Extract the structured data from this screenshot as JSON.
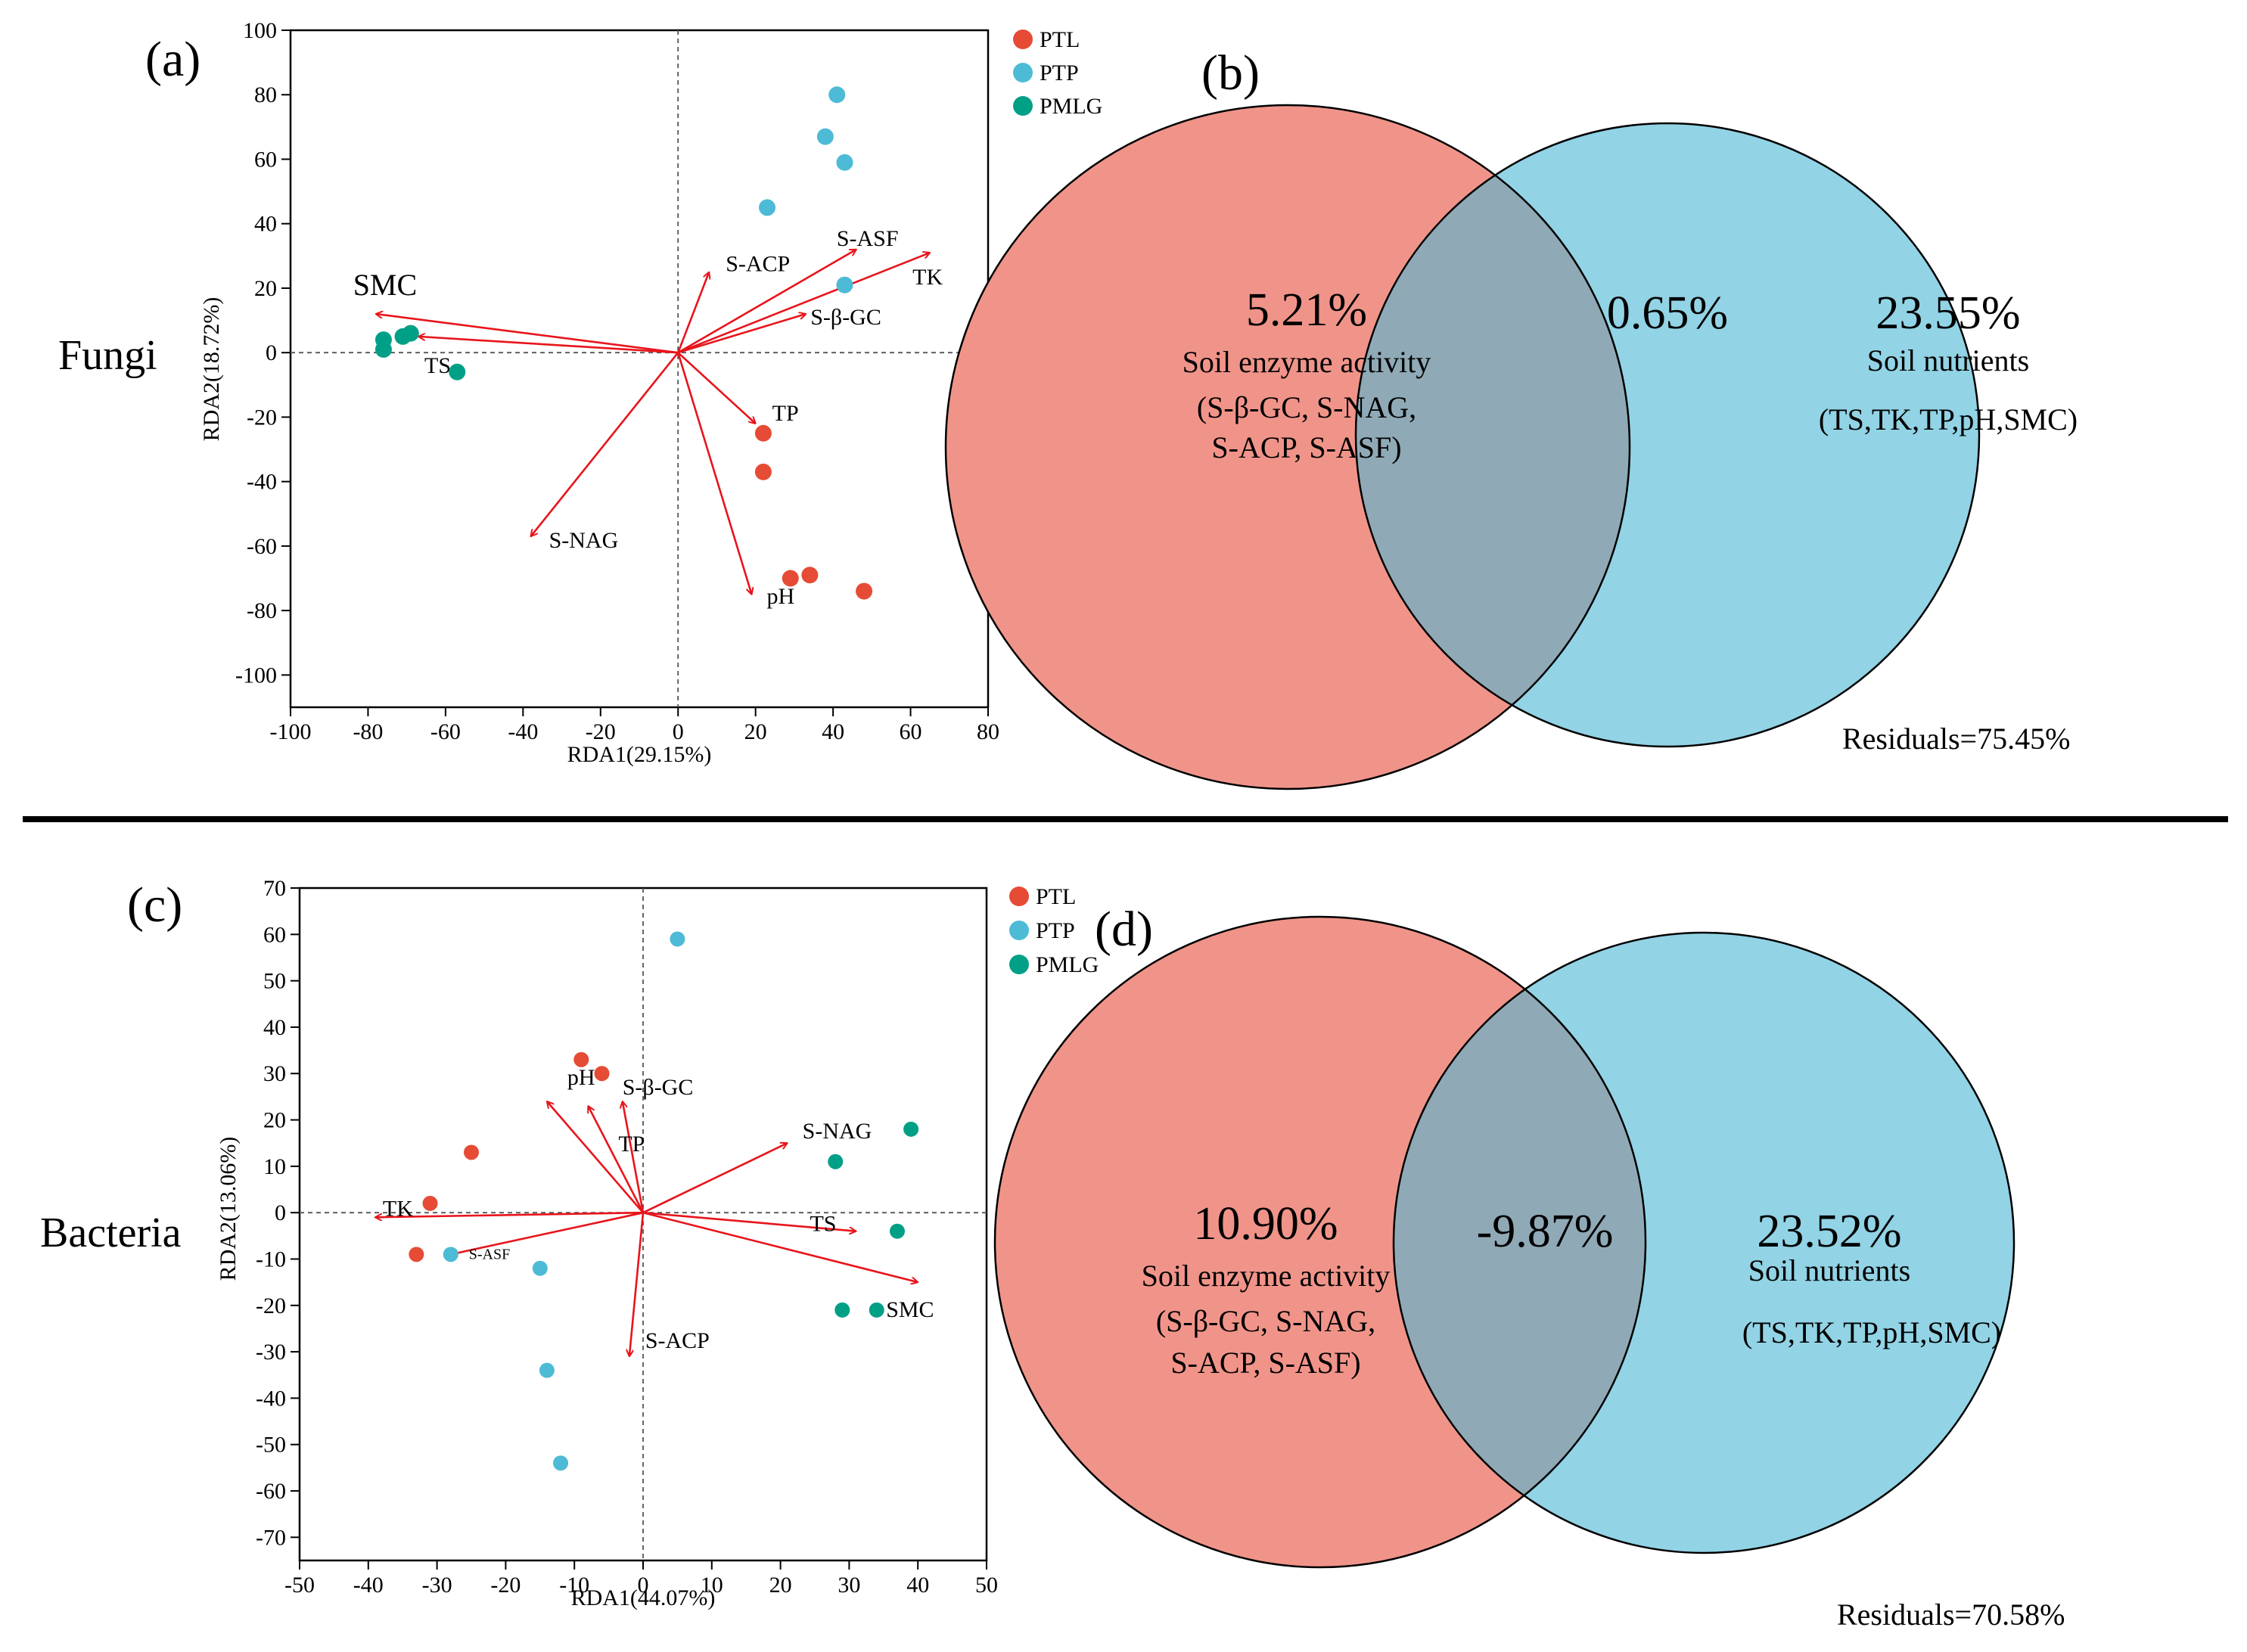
{
  "colors": {
    "PTL": "#e64b35",
    "PTP": "#4dbbd5",
    "PMLG": "#00a087",
    "arrow": "#e8141b",
    "venn_left": "#f0948a",
    "venn_right": "#92d3e5",
    "venn_overlap": "#8faab6"
  },
  "chart_data": [
    {
      "type": "scatter",
      "panel_label": "(a)",
      "row_label": "Fungi",
      "xlabel": "RDA1(29.15%)",
      "ylabel": "RDA2(18.72%)",
      "xlim": [
        -100,
        80
      ],
      "ylim": [
        -110,
        100
      ],
      "xticks": [
        -100,
        -80,
        -60,
        -40,
        -20,
        0,
        20,
        40,
        60,
        80
      ],
      "yticks": [
        100,
        80,
        60,
        40,
        20,
        0,
        -20,
        -40,
        -60,
        -80,
        -100
      ],
      "legend": [
        "PTL",
        "PTP",
        "PMLG"
      ],
      "series": [
        {
          "name": "PTL",
          "points": [
            [
              22,
              -25
            ],
            [
              22,
              -37
            ],
            [
              29,
              -70
            ],
            [
              34,
              -69
            ],
            [
              48,
              -74
            ]
          ]
        },
        {
          "name": "PTP",
          "points": [
            [
              41,
              80
            ],
            [
              38,
              67
            ],
            [
              43,
              59
            ],
            [
              23,
              45
            ],
            [
              43,
              21
            ]
          ]
        },
        {
          "name": "PMLG",
          "points": [
            [
              -76,
              4
            ],
            [
              -71,
              5
            ],
            [
              -69,
              6
            ],
            [
              -76,
              1
            ],
            [
              -57,
              -6
            ]
          ]
        }
      ],
      "vectors": [
        {
          "name": "SMC",
          "x": -78,
          "y": 12
        },
        {
          "name": "TS",
          "x": -67,
          "y": 5
        },
        {
          "name": "S-ACP",
          "x": 8,
          "y": 25
        },
        {
          "name": "S-ASF",
          "x": 46,
          "y": 32
        },
        {
          "name": "TK",
          "x": 65,
          "y": 31
        },
        {
          "name": "S-β-GC",
          "x": 33,
          "y": 12
        },
        {
          "name": "TP",
          "x": 20,
          "y": -22
        },
        {
          "name": "S-NAG",
          "x": -38,
          "y": -57
        },
        {
          "name": "pH",
          "x": 19,
          "y": -75
        }
      ]
    },
    {
      "type": "scatter",
      "panel_label": "(c)",
      "row_label": "Bacteria",
      "xlabel": "RDA1(44.07%)",
      "ylabel": "RDA2(13.06%)",
      "xlim": [
        -50,
        50
      ],
      "ylim": [
        -75,
        70
      ],
      "xticks": [
        -50,
        -40,
        -30,
        -20,
        -10,
        0,
        10,
        20,
        30,
        40,
        50
      ],
      "yticks": [
        70,
        60,
        50,
        40,
        30,
        20,
        10,
        0,
        -10,
        -20,
        -30,
        -40,
        -50,
        -60,
        -70
      ],
      "legend": [
        "PTL",
        "PTP",
        "PMLG"
      ],
      "series": [
        {
          "name": "PTL",
          "points": [
            [
              -9,
              33
            ],
            [
              -6,
              30
            ],
            [
              -25,
              13
            ],
            [
              -31,
              2
            ],
            [
              -33,
              -9
            ]
          ]
        },
        {
          "name": "PTP",
          "points": [
            [
              5,
              59
            ],
            [
              -28,
              -9
            ],
            [
              -15,
              -12
            ],
            [
              -14,
              -34
            ],
            [
              -12,
              -54
            ]
          ]
        },
        {
          "name": "PMLG",
          "points": [
            [
              39,
              18
            ],
            [
              28,
              11
            ],
            [
              37,
              -4
            ],
            [
              29,
              -21
            ],
            [
              34,
              -21
            ]
          ]
        }
      ],
      "vectors": [
        {
          "name": "pH",
          "x": -14,
          "y": 24
        },
        {
          "name": "S-β-GC",
          "x": -3,
          "y": 24
        },
        {
          "name": "TP",
          "x": -8,
          "y": 23
        },
        {
          "name": "S-NAG",
          "x": 21,
          "y": 15
        },
        {
          "name": "TK",
          "x": -39,
          "y": -1
        },
        {
          "name": "S-ASF",
          "x": -28,
          "y": -9
        },
        {
          "name": "TS",
          "x": 31,
          "y": -4
        },
        {
          "name": "SMC",
          "x": 40,
          "y": -15
        },
        {
          "name": "S-ACP",
          "x": -2,
          "y": -31
        }
      ]
    }
  ],
  "venns": [
    {
      "panel_label": "(b)",
      "left_value": "5.21%",
      "left_title": "Soil enzyme activity",
      "left_line1": "(S-β-GC, S-NAG,",
      "left_line2": "S-ACP, S-ASF)",
      "overlap_value": "0.65%",
      "right_value": "23.55%",
      "right_title": "Soil nutrients",
      "right_line1": "(TS,TK,TP,pH,SMC)",
      "residuals": "Residuals=75.45%"
    },
    {
      "panel_label": "(d)",
      "left_value": "10.90%",
      "left_title": "Soil enzyme activity",
      "left_line1": "(S-β-GC, S-NAG,",
      "left_line2": "S-ACP, S-ASF)",
      "overlap_value": "-9.87%",
      "right_value": "23.52%",
      "right_title": "Soil nutrients",
      "right_line1": "(TS,TK,TP,pH,SMC)",
      "residuals": "Residuals=70.58%"
    }
  ]
}
